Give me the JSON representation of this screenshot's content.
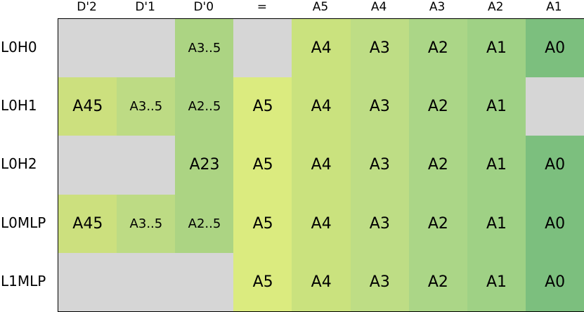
{
  "colors": {
    "empty": "#d6d6d6",
    "D'2": "#cce07e",
    "D'1": "#bddb84",
    "D'0": "#acd483",
    "=": "#dbeb7f",
    "A5": "#cae27e",
    "A4": "#bedd85",
    "A3": "#abd687",
    "A2": "#9fd185",
    "A1": "#8fc880",
    "A0": "#7cbf7e"
  },
  "columns": [
    "D'2",
    "D'1",
    "D'0",
    "=",
    "A5",
    "A4",
    "A3",
    "A2",
    "A1"
  ],
  "column_keys": [
    "D'2",
    "D'1",
    "D'0",
    "=",
    "A5",
    "A4",
    "A3",
    "A2",
    "A1"
  ],
  "cell_color_keys": [
    "D'2",
    "D'1",
    "D'0",
    "=",
    "A5",
    "A4",
    "A3",
    "A2",
    "A0"
  ],
  "rows": [
    {
      "label": "L0H0",
      "cells": [
        "",
        "",
        "A3..5",
        "",
        "A4",
        "A3",
        "A2",
        "A1",
        "A0"
      ],
      "filled": [
        false,
        false,
        true,
        false,
        true,
        true,
        true,
        true,
        true
      ]
    },
    {
      "label": "L0H1",
      "cells": [
        "A45",
        "A3..5",
        "A2..5",
        "A5",
        "A4",
        "A3",
        "A2",
        "A1",
        ""
      ],
      "filled": [
        true,
        true,
        true,
        true,
        true,
        true,
        true,
        true,
        false
      ]
    },
    {
      "label": "L0H2",
      "cells": [
        "",
        "",
        "A23",
        "A5",
        "A4",
        "A3",
        "A2",
        "A1",
        "A0"
      ],
      "filled": [
        false,
        false,
        true,
        true,
        true,
        true,
        true,
        true,
        true
      ]
    },
    {
      "label": "L0MLP",
      "cells": [
        "A45",
        "A3..5",
        "A2..5",
        "A5",
        "A4",
        "A3",
        "A2",
        "A1",
        "A0"
      ],
      "filled": [
        true,
        true,
        true,
        true,
        true,
        true,
        true,
        true,
        true
      ]
    },
    {
      "label": "L1MLP",
      "cells": [
        "",
        "",
        "",
        "A5",
        "A4",
        "A3",
        "A2",
        "A1",
        "A0"
      ],
      "filled": [
        false,
        false,
        false,
        true,
        true,
        true,
        true,
        true,
        true
      ]
    }
  ]
}
